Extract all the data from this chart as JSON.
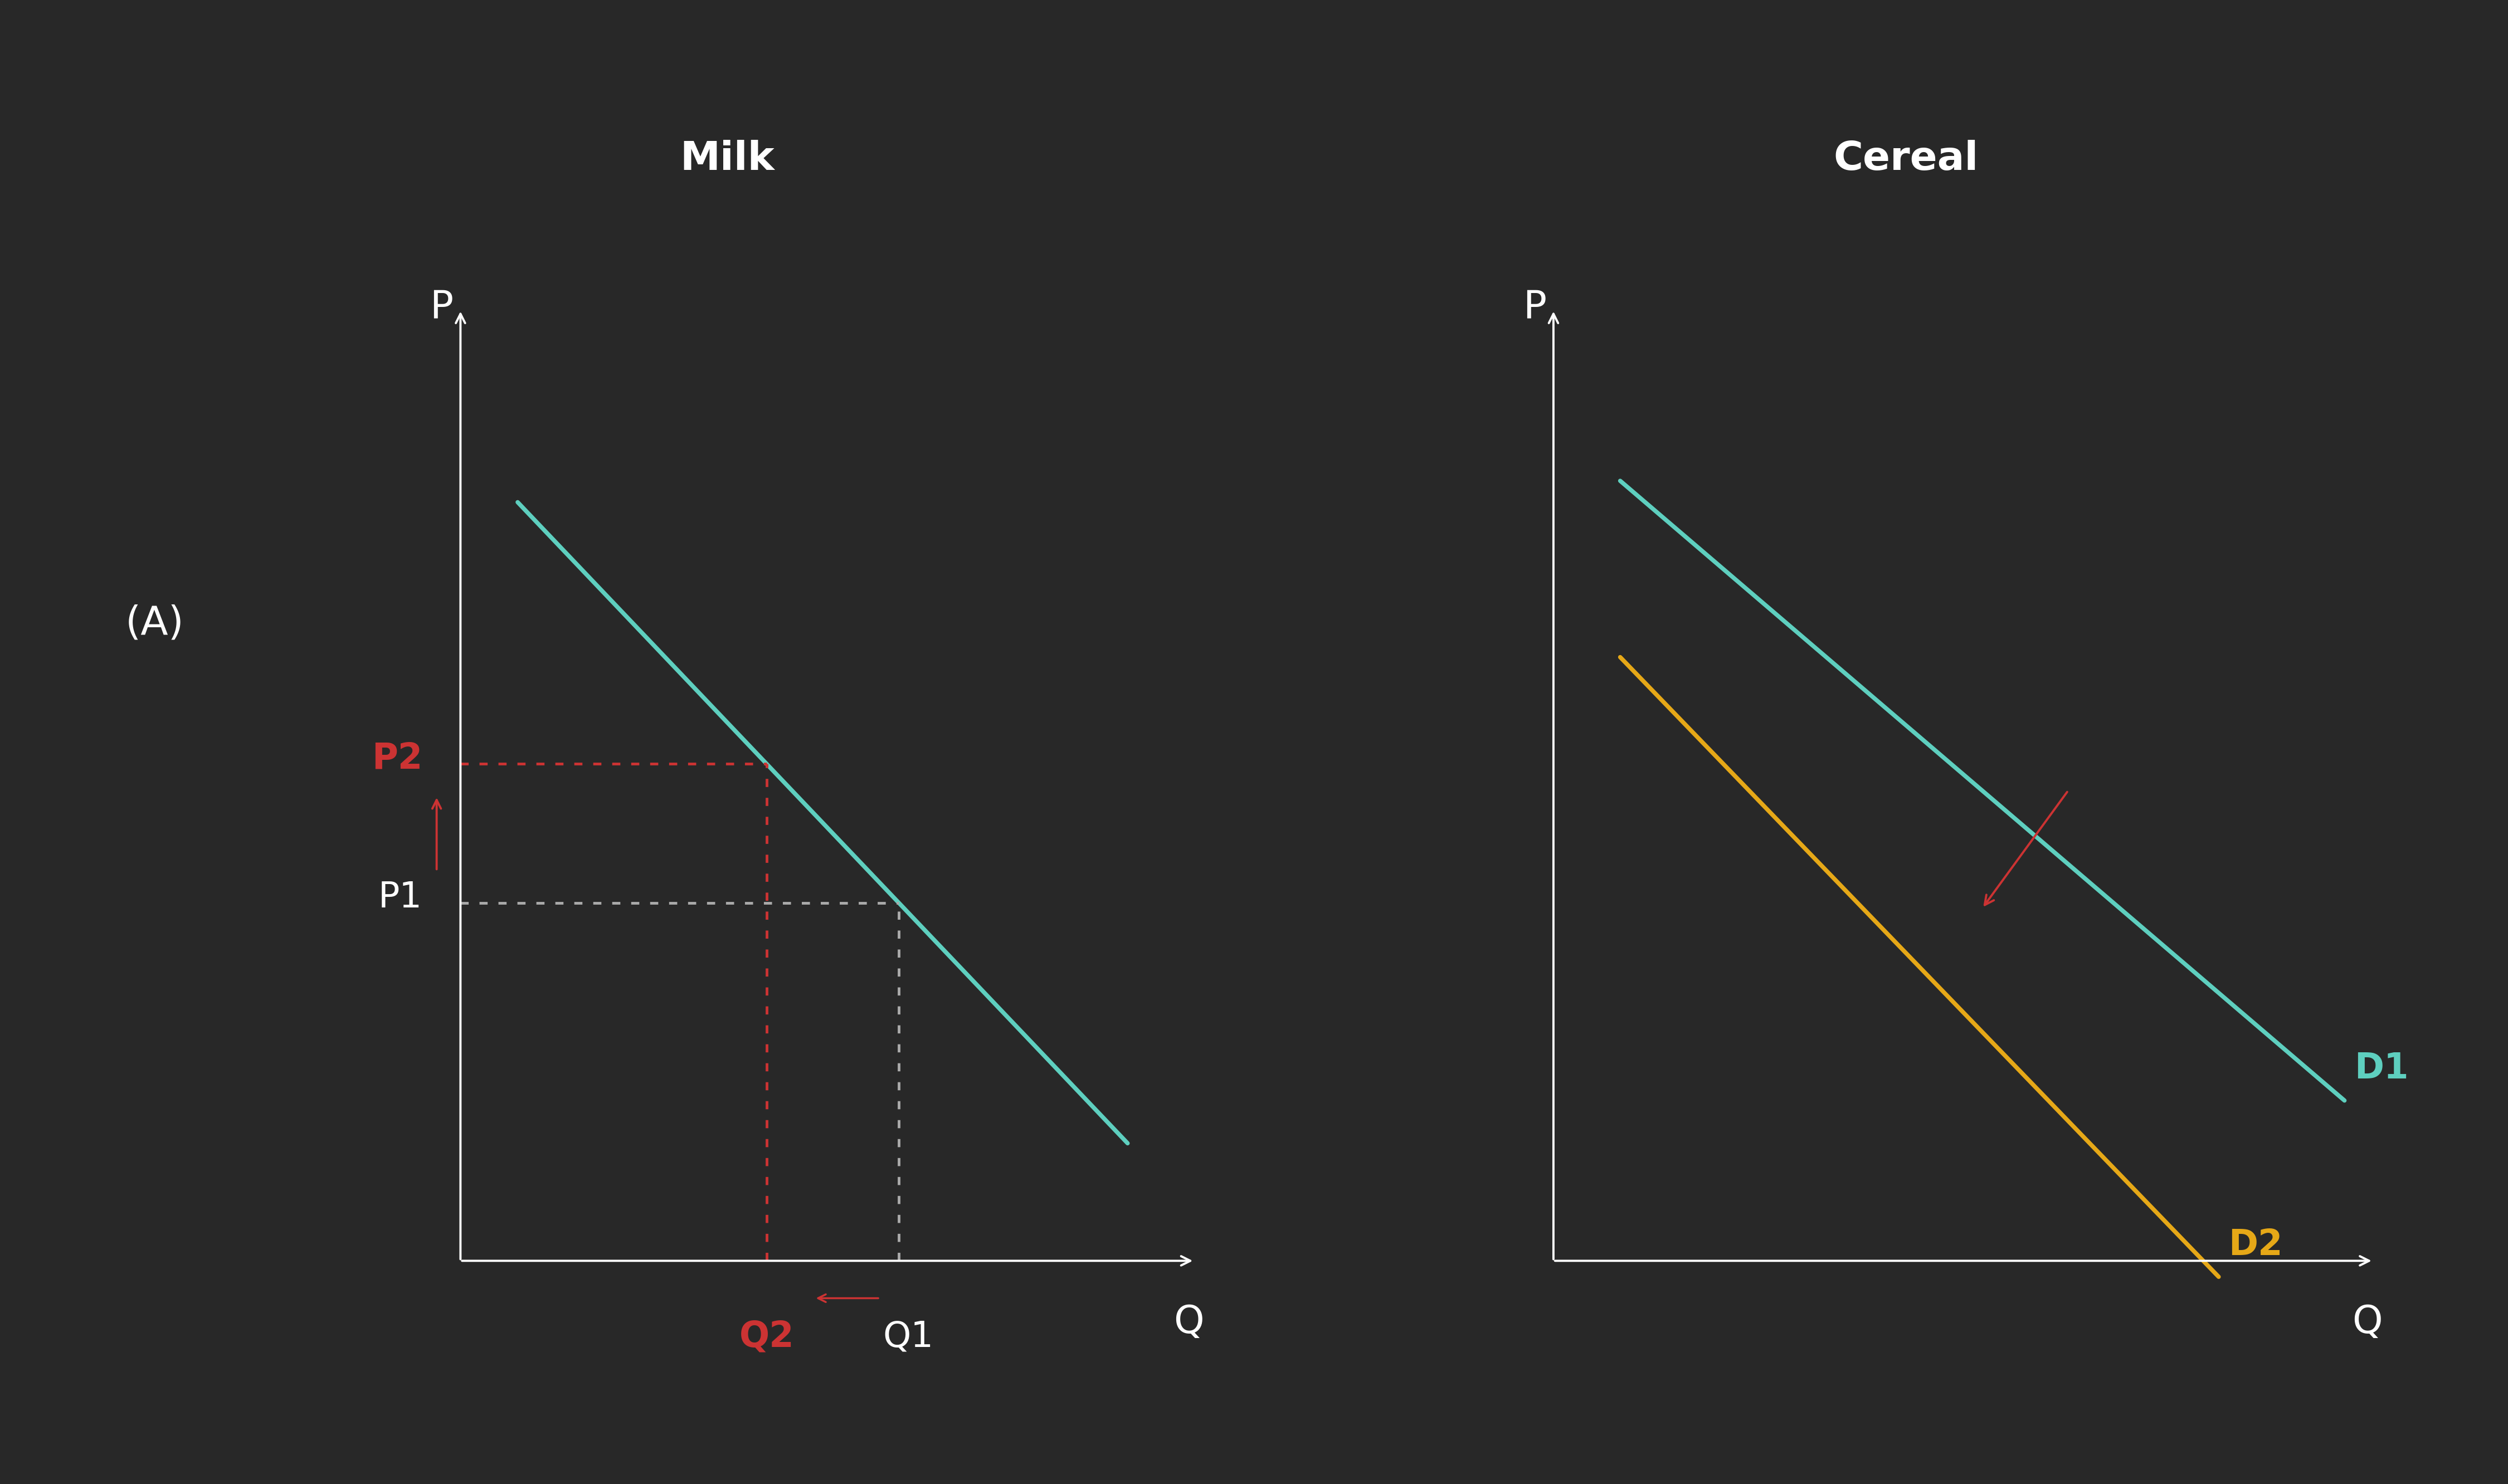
{
  "bg_color": "#282828",
  "text_color": "#ffffff",
  "teal_color": "#5ecfbf",
  "orange_color": "#e6a817",
  "red_color": "#cc3333",
  "gray_color": "#aaaaaa",
  "title_milk": "Milk",
  "title_cereal": "Cereal",
  "label_A": "(A)",
  "label_P": "P",
  "label_Q": "Q",
  "label_P1": "P1",
  "label_P2": "P2",
  "label_Q1": "Q1",
  "label_Q2": "Q2",
  "label_D1": "D1",
  "label_D2": "D2",
  "font_size_title": 52,
  "font_size_label": 46,
  "font_size_axis_label": 50,
  "font_size_A": 52,
  "line_width": 5.5,
  "dotted_lw": 3.5
}
